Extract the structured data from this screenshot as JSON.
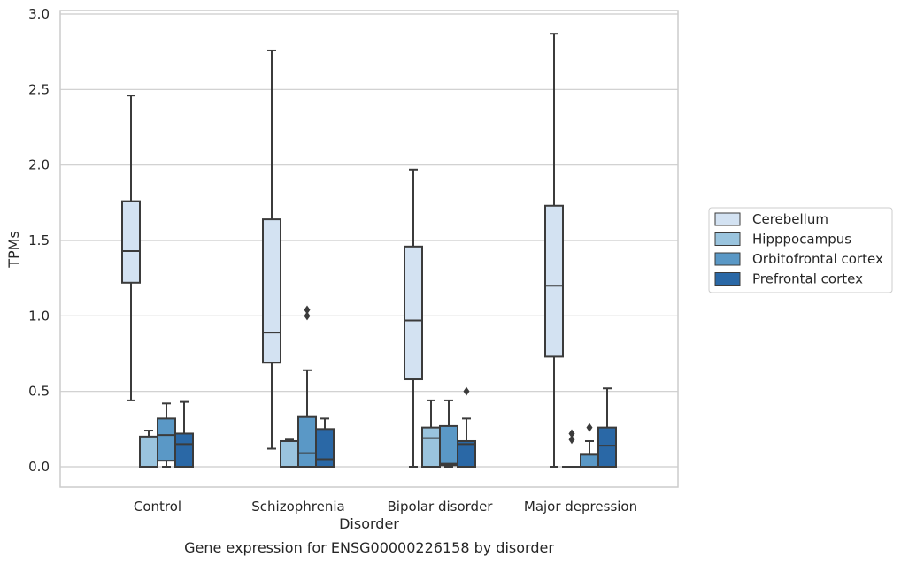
{
  "chart_data": {
    "type": "box",
    "xlabel": "Disorder",
    "ylabel": "TPMs",
    "caption": "Gene expression for ENSG00000226158 by disorder",
    "ylim": [
      -0.14,
      3.02
    ],
    "yticks": [
      "0.0",
      "0.5",
      "1.0",
      "1.5",
      "2.0",
      "2.5",
      "3.0"
    ],
    "grid": true,
    "legend_position": "right",
    "categories": [
      "Control",
      "Schizophrenia",
      "Bipolar disorder",
      "Major depression"
    ],
    "series": [
      {
        "name": "Cerebellum",
        "color": "#d3e2f2",
        "boxes": [
          {
            "whislo": 0.44,
            "q1": 1.22,
            "med": 1.43,
            "q3": 1.76,
            "whishi": 2.46,
            "fliers": []
          },
          {
            "whislo": 0.12,
            "q1": 0.69,
            "med": 0.89,
            "q3": 1.64,
            "whishi": 2.76,
            "fliers": []
          },
          {
            "whislo": 0.0,
            "q1": 0.58,
            "med": 0.97,
            "q3": 1.46,
            "whishi": 1.97,
            "fliers": []
          },
          {
            "whislo": 0.0,
            "q1": 0.73,
            "med": 1.2,
            "q3": 1.73,
            "whishi": 2.87,
            "fliers": []
          }
        ]
      },
      {
        "name": "Hipppocampus",
        "color": "#9ac4de",
        "boxes": [
          {
            "whislo": 0.0,
            "q1": 0.0,
            "med": 0.0,
            "q3": 0.2,
            "whishi": 0.24,
            "fliers": []
          },
          {
            "whislo": 0.0,
            "q1": 0.0,
            "med": 0.0,
            "q3": 0.17,
            "whishi": 0.18,
            "fliers": []
          },
          {
            "whislo": 0.0,
            "q1": 0.0,
            "med": 0.19,
            "q3": 0.26,
            "whishi": 0.44,
            "fliers": []
          },
          {
            "whislo": 0.0,
            "q1": 0.0,
            "med": 0.0,
            "q3": 0.0,
            "whishi": 0.0,
            "fliers": [
              0.18,
              0.22
            ]
          }
        ]
      },
      {
        "name": "Orbitofrontal cortex",
        "color": "#5a98c6",
        "boxes": [
          {
            "whislo": 0.0,
            "q1": 0.04,
            "med": 0.21,
            "q3": 0.32,
            "whishi": 0.42,
            "fliers": []
          },
          {
            "whislo": 0.0,
            "q1": 0.0,
            "med": 0.09,
            "q3": 0.33,
            "whishi": 0.64,
            "fliers": [
              1.0,
              1.04
            ]
          },
          {
            "whislo": 0.0,
            "q1": 0.01,
            "med": 0.02,
            "q3": 0.27,
            "whishi": 0.44,
            "fliers": []
          },
          {
            "whislo": 0.0,
            "q1": 0.0,
            "med": 0.0,
            "q3": 0.08,
            "whishi": 0.17,
            "fliers": [
              0.26
            ]
          }
        ]
      },
      {
        "name": "Prefrontal cortex",
        "color": "#2a68a6",
        "boxes": [
          {
            "whislo": 0.0,
            "q1": 0.0,
            "med": 0.15,
            "q3": 0.22,
            "whishi": 0.43,
            "fliers": []
          },
          {
            "whislo": 0.0,
            "q1": 0.0,
            "med": 0.05,
            "q3": 0.25,
            "whishi": 0.32,
            "fliers": []
          },
          {
            "whislo": 0.0,
            "q1": 0.0,
            "med": 0.15,
            "q3": 0.17,
            "whishi": 0.32,
            "fliers": [
              0.5
            ]
          },
          {
            "whislo": 0.0,
            "q1": 0.0,
            "med": 0.14,
            "q3": 0.26,
            "whishi": 0.52,
            "fliers": []
          }
        ]
      }
    ]
  }
}
